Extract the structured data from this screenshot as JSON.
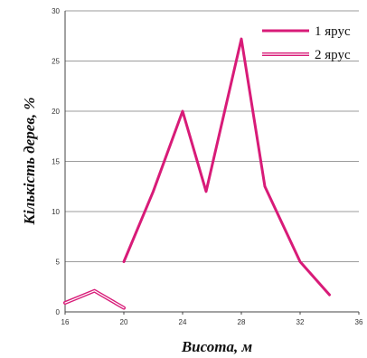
{
  "chart_data": {
    "type": "line",
    "xlabel": "Висота, м",
    "ylabel": "Кількість дерев, %",
    "xlim": [
      16,
      36
    ],
    "ylim": [
      0,
      30
    ],
    "xticks": [
      16,
      20,
      24,
      28,
      32,
      36
    ],
    "yticks": [
      0,
      5,
      10,
      15,
      20,
      25,
      30
    ],
    "grid": "horizontal",
    "legend": "top-right",
    "series": [
      {
        "name": "1 ярус",
        "color": "#d81b78",
        "style": "solid",
        "x": [
          20,
          22,
          24,
          25.6,
          28,
          29.6,
          32,
          34
        ],
        "y": [
          5,
          12,
          20,
          12,
          27.2,
          12.5,
          5,
          1.7
        ]
      },
      {
        "name": "2 ярус",
        "color": "#d81b78",
        "style": "double",
        "x": [
          16,
          18,
          20
        ],
        "y": [
          0.9,
          2.1,
          0.4
        ]
      }
    ]
  }
}
